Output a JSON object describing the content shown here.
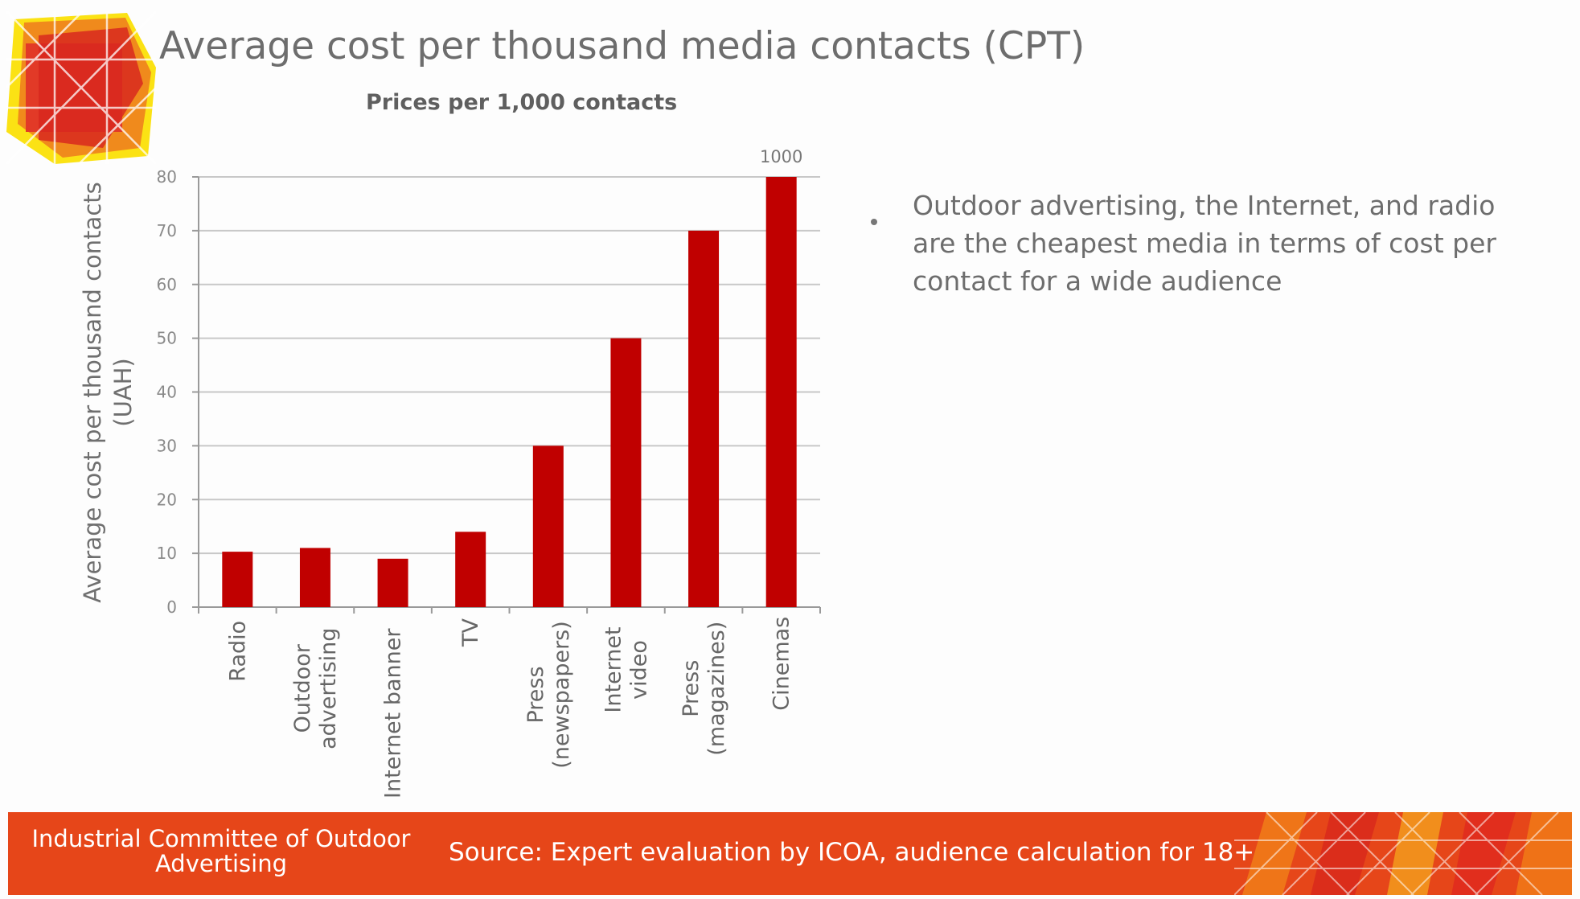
{
  "slide": {
    "title": "Average cost per thousand media contacts (CPT)",
    "bullet": "Outdoor advertising, the Internet, and radio are the cheapest media in terms of cost per contact for a wide audience"
  },
  "footer": {
    "organization": "Industrial Committee of Outdoor Advertising",
    "source": "Source: Expert evaluation by ICOA, audience calculation for 18+"
  },
  "colors": {
    "bar": "#c00000",
    "footer": "#e64619",
    "gridline": "#c8c8c8"
  },
  "chart_data": {
    "type": "bar",
    "title": "Prices per 1,000 contacts",
    "xlabel": "",
    "ylabel": "Average cost per thousand contacts (UAH)",
    "ylabel_lines": [
      "Average cost per thousand contacts",
      "(UAH)"
    ],
    "ylim": [
      0,
      80
    ],
    "yticks": [
      0,
      10,
      20,
      30,
      40,
      50,
      60,
      70,
      80
    ],
    "grid": true,
    "categories": [
      "Radio",
      "Outdoor advertising",
      "Internet banner",
      "TV",
      "Press (newspapers)",
      "Internet video",
      "Press (magazines)",
      "Cinemas"
    ],
    "category_lines": [
      [
        "Radio"
      ],
      [
        "Outdoor",
        "advertising"
      ],
      [
        "Internet banner"
      ],
      [
        "TV"
      ],
      [
        "Press",
        "(newspapers)"
      ],
      [
        "Internet",
        "video"
      ],
      [
        "Press",
        "(magazines)"
      ],
      [
        "Cinemas"
      ]
    ],
    "values": [
      10.3,
      11,
      9,
      14,
      30,
      50,
      70,
      1000
    ],
    "data_labels": [
      "",
      "",
      "",
      "",
      "",
      "",
      "",
      "1000"
    ]
  }
}
